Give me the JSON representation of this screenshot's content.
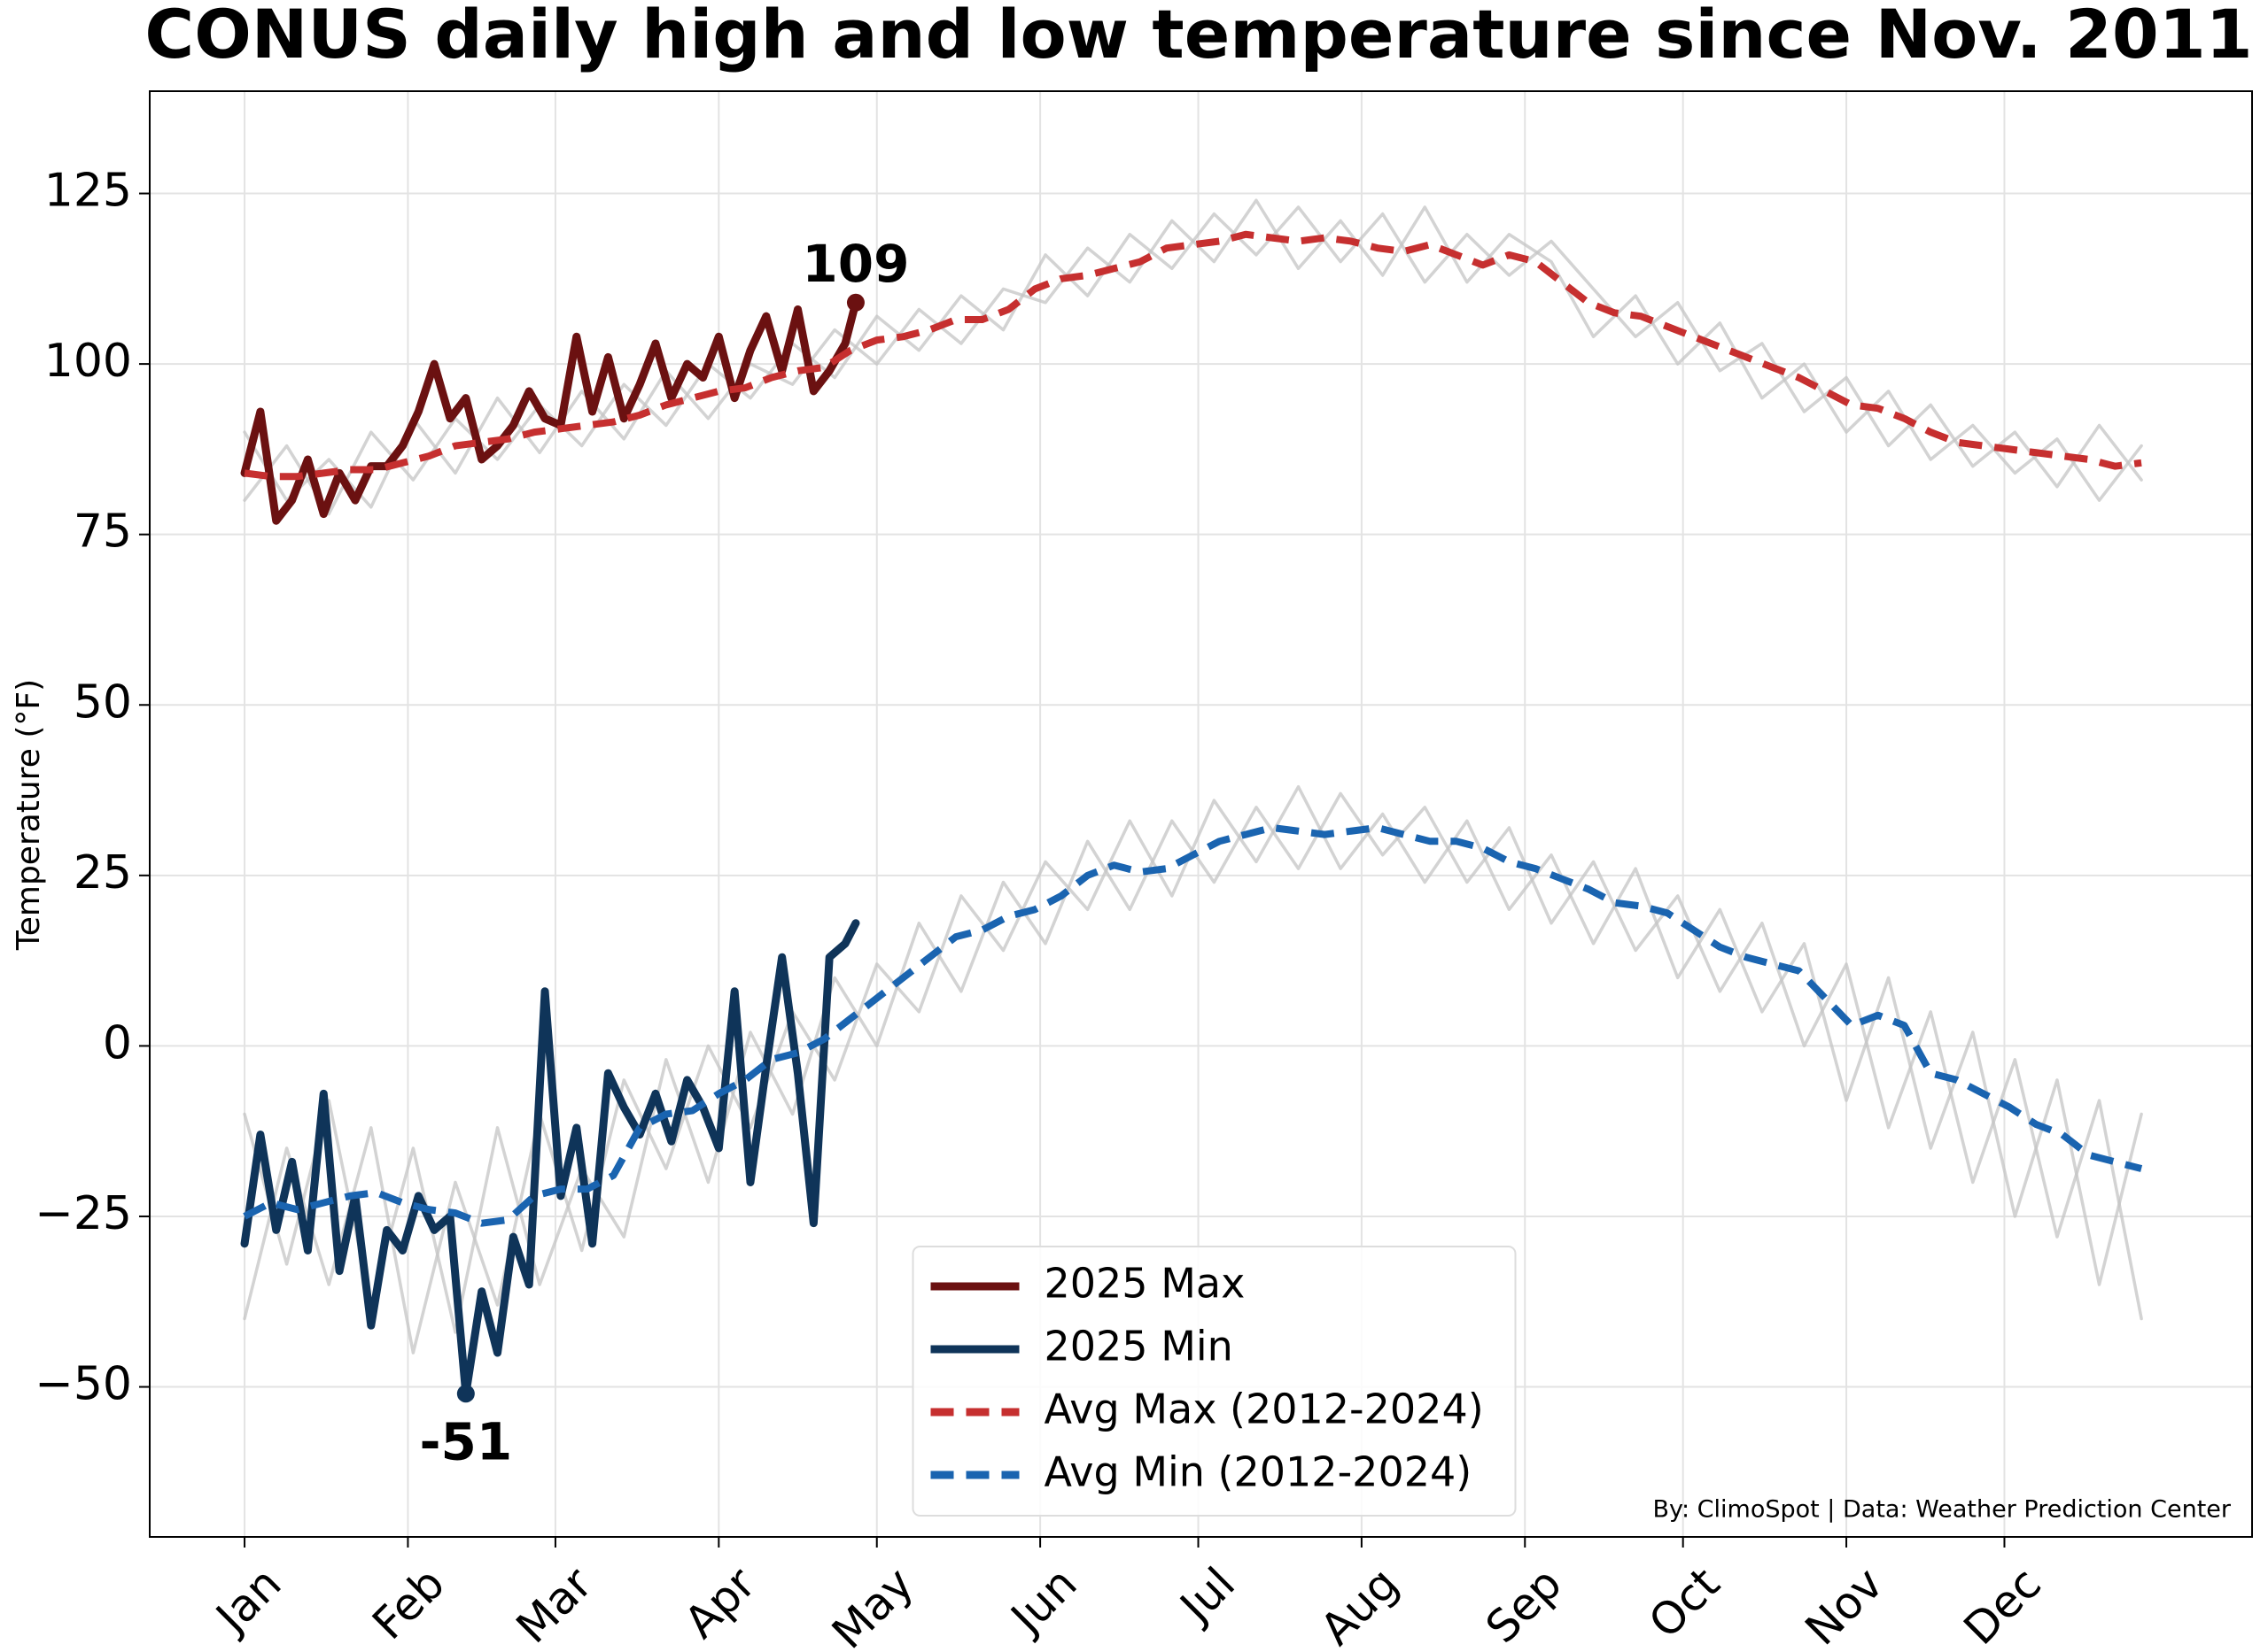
{
  "chart_data": {
    "type": "line",
    "title": "CONUS daily high and low temperature since Nov. 2011",
    "y_label": "Temperature (°F)",
    "credit": "By: ClimoSpot | Data: Weather Prediction Center",
    "xlim": [
      -17,
      382
    ],
    "ylim": [
      -72,
      140
    ],
    "xticks": [
      {
        "value": 1,
        "label": "Jan"
      },
      {
        "value": 32,
        "label": "Feb"
      },
      {
        "value": 60,
        "label": "Mar"
      },
      {
        "value": 91,
        "label": "Apr"
      },
      {
        "value": 121,
        "label": "May"
      },
      {
        "value": 152,
        "label": "Jun"
      },
      {
        "value": 182,
        "label": "Jul"
      },
      {
        "value": 213,
        "label": "Aug"
      },
      {
        "value": 244,
        "label": "Sep"
      },
      {
        "value": 274,
        "label": "Oct"
      },
      {
        "value": 305,
        "label": "Nov"
      },
      {
        "value": 335,
        "label": "Dec"
      }
    ],
    "yticks": [
      {
        "value": -50,
        "label": "−50"
      },
      {
        "value": -25,
        "label": "−25"
      },
      0,
      25,
      50,
      75,
      100,
      125
    ],
    "grid": true,
    "legend": "lower center",
    "series": [
      {
        "color": "#c4c4c4",
        "x": [
          1,
          9,
          17,
          25,
          33,
          41,
          49,
          57,
          65,
          73,
          81,
          89,
          97,
          105,
          113,
          121,
          129,
          137,
          145,
          153,
          161,
          169,
          177,
          185,
          193,
          201,
          209,
          217,
          225,
          233,
          241,
          249,
          257,
          265,
          273,
          281,
          289,
          297,
          305,
          313,
          321,
          329,
          337,
          345,
          353,
          361
        ],
        "values": [
          90,
          80,
          86,
          79,
          92,
          84,
          95,
          87,
          96,
          89,
          99,
          92,
          100,
          97,
          105,
          100,
          108,
          103,
          111,
          109,
          117,
          112,
          121,
          115,
          124,
          114,
          121,
          113,
          123,
          112,
          119,
          115,
          104,
          110,
          100,
          106,
          95,
          100,
          90,
          96,
          86,
          91,
          84,
          89,
          80,
          88
        ]
      },
      {
        "color": "#c4c4c4",
        "x": [
          1,
          9,
          17,
          25,
          33,
          41,
          49,
          57,
          65,
          73,
          81,
          89,
          97,
          105,
          113,
          121,
          129,
          137,
          145,
          153,
          161,
          169,
          177,
          185,
          193,
          201,
          209,
          217,
          225,
          233,
          241,
          249,
          257,
          265,
          273,
          281,
          289,
          297,
          305,
          313,
          321,
          329,
          337,
          345,
          353,
          361
        ],
        "values": [
          80,
          88,
          78,
          90,
          83,
          92,
          86,
          94,
          88,
          97,
          91,
          100,
          95,
          103,
          98,
          107,
          102,
          110,
          105,
          116,
          110,
          119,
          114,
          122,
          116,
          123,
          115,
          122,
          112,
          119,
          113,
          118,
          111,
          104,
          109,
          99,
          103,
          93,
          98,
          88,
          94,
          85,
          90,
          82,
          91,
          83
        ]
      },
      {
        "color": "#c4c4c4",
        "x": [
          1,
          9,
          17,
          25,
          33,
          41,
          49,
          57,
          65,
          73,
          81,
          89,
          97,
          105,
          113,
          121,
          129,
          137,
          145,
          153,
          161,
          169,
          177,
          185,
          193,
          201,
          209,
          217,
          225,
          233,
          241,
          249,
          257,
          265,
          273,
          281,
          289,
          297,
          305,
          313,
          321,
          329,
          337,
          345,
          353,
          361
        ],
        "values": [
          -40,
          -15,
          -35,
          -12,
          -45,
          -20,
          -38,
          -10,
          -30,
          -5,
          -18,
          0,
          -12,
          5,
          -5,
          12,
          5,
          22,
          14,
          27,
          20,
          33,
          22,
          36,
          27,
          38,
          26,
          34,
          24,
          33,
          20,
          28,
          15,
          26,
          10,
          20,
          5,
          15,
          -8,
          10,
          -15,
          2,
          -25,
          -5,
          -35,
          -10
        ]
      },
      {
        "color": "#c4c4c4",
        "x": [
          1,
          9,
          17,
          25,
          33,
          41,
          49,
          57,
          65,
          73,
          81,
          89,
          97,
          105,
          113,
          121,
          129,
          137,
          145,
          153,
          161,
          169,
          177,
          185,
          193,
          201,
          209,
          217,
          225,
          233,
          241,
          249,
          257,
          265,
          273,
          281,
          289,
          297,
          305,
          313,
          321,
          329,
          337,
          345,
          353,
          361
        ],
        "values": [
          -10,
          -32,
          -8,
          -38,
          -15,
          -42,
          -12,
          -35,
          -18,
          -28,
          -2,
          -20,
          2,
          -10,
          10,
          0,
          18,
          8,
          24,
          15,
          30,
          20,
          33,
          24,
          35,
          26,
          37,
          28,
          35,
          24,
          32,
          18,
          27,
          14,
          22,
          8,
          18,
          0,
          12,
          -12,
          5,
          -20,
          -2,
          -28,
          -8,
          -40
        ]
      },
      {
        "name": "2025 Max",
        "color": "#6b1111",
        "x": [
          1,
          4,
          7,
          10,
          13,
          16,
          19,
          22,
          25,
          28,
          31,
          34,
          37,
          40,
          43,
          46,
          49,
          52,
          55,
          58,
          61,
          64,
          67,
          70,
          73,
          76,
          79,
          82,
          85,
          88,
          91,
          94,
          97,
          100,
          103,
          106,
          109,
          112,
          115,
          117
        ],
        "values": [
          84,
          93,
          77,
          80,
          86,
          78,
          84,
          80,
          85,
          85,
          88,
          93,
          100,
          92,
          95,
          86,
          88,
          91,
          96,
          92,
          91,
          104,
          93,
          101,
          92,
          97,
          103,
          95,
          100,
          98,
          104,
          95,
          102,
          107,
          99,
          108,
          96,
          99,
          103,
          109
        ]
      },
      {
        "name": "2025 Min",
        "color": "#0f3459",
        "x": [
          1,
          4,
          7,
          10,
          13,
          16,
          19,
          22,
          25,
          28,
          31,
          34,
          37,
          40,
          43,
          46,
          49,
          52,
          55,
          58,
          61,
          64,
          67,
          70,
          73,
          76,
          79,
          82,
          85,
          88,
          91,
          94,
          97,
          100,
          103,
          106,
          109,
          112,
          115,
          117
        ],
        "values": [
          -29,
          -13,
          -27,
          -17,
          -30,
          -7,
          -33,
          -22,
          -41,
          -27,
          -30,
          -22,
          -27,
          -25,
          -51,
          -36,
          -45,
          -28,
          -35,
          8,
          -22,
          -12,
          -29,
          -4,
          -9,
          -13,
          -7,
          -14,
          -5,
          -9,
          -15,
          8,
          -20,
          -3,
          13,
          -4,
          -26,
          13,
          15,
          18
        ]
      },
      {
        "name": "Avg Max (2012-2024)",
        "color": "#c62f2f",
        "linestyle": "dashed",
        "x": [
          1,
          6,
          11,
          16,
          21,
          26,
          31,
          36,
          41,
          46,
          51,
          56,
          61,
          66,
          71,
          76,
          81,
          86,
          91,
          96,
          101,
          106,
          111,
          116,
          121,
          126,
          131,
          136,
          141,
          146,
          151,
          156,
          161,
          166,
          171,
          176,
          181,
          186,
          191,
          196,
          201,
          206,
          211,
          216,
          221,
          226,
          231,
          236,
          241,
          246,
          251,
          256,
          261,
          266,
          271,
          276,
          281,
          286,
          291,
          296,
          301,
          306,
          311,
          316,
          321,
          326,
          331,
          336,
          341,
          346,
          351,
          356,
          361
        ],
        "values": [
          84,
          83.5,
          83.5,
          84,
          84.5,
          84.5,
          85.5,
          86.5,
          88,
          88.5,
          89,
          90,
          90.5,
          91,
          91.5,
          92.5,
          94,
          95,
          96,
          96.5,
          98,
          99,
          99.5,
          102,
          103.5,
          104,
          105,
          106.5,
          106.5,
          108,
          111,
          112.5,
          113,
          114,
          115,
          117,
          117.5,
          118,
          119,
          118.5,
          118,
          118.5,
          118,
          117,
          116.5,
          117.5,
          116,
          114.5,
          116,
          115,
          112,
          109,
          107.5,
          107,
          105.5,
          104,
          102.5,
          101,
          99.5,
          98,
          96,
          94,
          93.5,
          92,
          90,
          88.5,
          88,
          87.5,
          87,
          86.5,
          86,
          85,
          85.5
        ]
      },
      {
        "name": "Avg Min (2012-2024)",
        "color": "#1a64b0",
        "linestyle": "dashed",
        "x": [
          1,
          6,
          11,
          16,
          21,
          26,
          31,
          36,
          41,
          46,
          51,
          56,
          61,
          66,
          71,
          76,
          81,
          86,
          91,
          96,
          101,
          106,
          111,
          116,
          121,
          126,
          131,
          136,
          141,
          146,
          151,
          156,
          161,
          166,
          171,
          176,
          181,
          186,
          191,
          196,
          201,
          206,
          211,
          216,
          221,
          226,
          231,
          236,
          241,
          246,
          251,
          256,
          261,
          266,
          271,
          276,
          281,
          286,
          291,
          296,
          301,
          306,
          311,
          316,
          321,
          326,
          331,
          336,
          341,
          346,
          351,
          356,
          361
        ],
        "values": [
          -25,
          -23,
          -24,
          -23,
          -22,
          -21.5,
          -23,
          -24,
          -24.5,
          -26,
          -25.5,
          -22,
          -21,
          -21,
          -19,
          -12,
          -10,
          -9.5,
          -7,
          -5,
          -2,
          -1,
          1,
          4,
          7,
          10,
          13,
          16,
          17,
          19,
          20,
          22,
          25,
          26.5,
          25.5,
          26,
          28,
          30,
          31,
          32,
          31.5,
          31,
          31.5,
          32,
          31,
          30,
          30,
          29,
          27,
          26,
          24.5,
          23,
          21,
          20.5,
          19.5,
          17,
          14.5,
          13,
          12,
          11,
          7,
          3,
          4.5,
          3,
          -4,
          -5,
          -7,
          -9,
          -11.5,
          -13,
          -16,
          -17,
          -18
        ]
      }
    ],
    "annotations": [
      {
        "text": "109",
        "x": 117,
        "y": 109,
        "color": "#6b1111"
      },
      {
        "text": "-51",
        "x": 43,
        "y": -51,
        "color": "#0f3459"
      }
    ]
  }
}
